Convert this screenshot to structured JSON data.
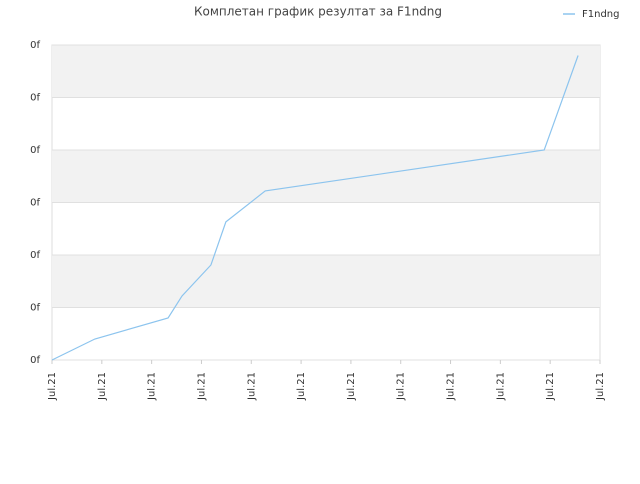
{
  "chart_data": {
    "type": "line",
    "title": "Комплетан график резултат за F1ndng",
    "x": [
      0,
      0.86,
      2.33,
      2.61,
      3.19,
      3.49,
      4.28,
      9.88,
      10.56
    ],
    "series": [
      {
        "name": "F1ndng",
        "color": "#8cc4ee",
        "values": [
          0,
          0.4,
          0.8,
          1.22,
          1.81,
          2.63,
          3.22,
          4.0,
          5.8
        ]
      }
    ],
    "xlim": [
      0,
      11
    ],
    "xticks": [
      {
        "value": 0,
        "label": "Jul.21"
      },
      {
        "value": 1,
        "label": "Jul.21"
      },
      {
        "value": 2,
        "label": "Jul.21"
      },
      {
        "value": 3,
        "label": "Jul.21"
      },
      {
        "value": 4,
        "label": "Jul.21"
      },
      {
        "value": 5,
        "label": "Jul.21"
      },
      {
        "value": 6,
        "label": "Jul.21"
      },
      {
        "value": 7,
        "label": "Jul.21"
      },
      {
        "value": 8,
        "label": "Jul.21"
      },
      {
        "value": 9,
        "label": "Jul.21"
      },
      {
        "value": 10,
        "label": "Jul.21"
      },
      {
        "value": 11,
        "label": "Jul.21"
      }
    ],
    "ylim": [
      0,
      6
    ],
    "yticks": [
      {
        "value": 0,
        "label": "0f"
      },
      {
        "value": 1,
        "label": "0f"
      },
      {
        "value": 2,
        "label": "0f"
      },
      {
        "value": 3,
        "label": "0f"
      },
      {
        "value": 4,
        "label": "0f"
      },
      {
        "value": 5,
        "label": "0f"
      },
      {
        "value": 6,
        "label": "0f"
      }
    ],
    "grid": true,
    "legend": "top-right"
  }
}
